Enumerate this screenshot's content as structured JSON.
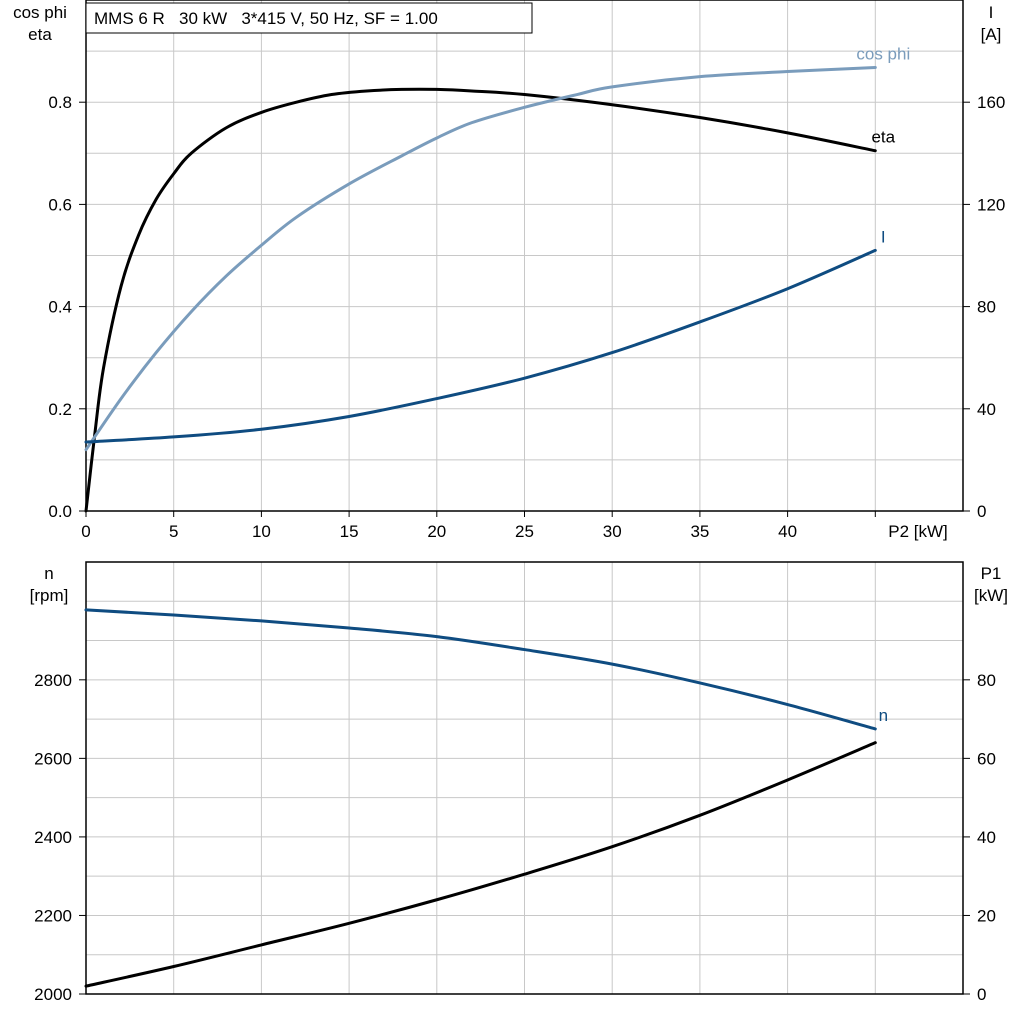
{
  "title": "MMS 6 R   30 kW   3*415 V, 50 Hz, SF = 1.00",
  "colors": {
    "eta": "#000000",
    "cos_phi": "#7a9cbc",
    "current": "#0f4c81",
    "speed": "#0f4c81",
    "p1": "#000000",
    "grid": "#c8c8c8",
    "frame": "#000000"
  },
  "chart_data": [
    {
      "type": "line",
      "xlabel": "P2 [kW]",
      "xlim": [
        0,
        50
      ],
      "xticks": [
        0,
        5,
        10,
        15,
        20,
        25,
        30,
        35,
        40
      ],
      "left_axis": {
        "label_lines": [
          "cos phi",
          "eta"
        ],
        "ylim": [
          0,
          1.0
        ],
        "ticks": [
          "0.0",
          "0.2",
          "0.4",
          "0.6",
          "0.8"
        ],
        "tick_values": [
          0,
          0.2,
          0.4,
          0.6,
          0.8
        ]
      },
      "right_axis": {
        "label_lines": [
          "I",
          "[A]"
        ],
        "ylim": [
          0,
          200
        ],
        "ticks": [
          "0",
          "40",
          "80",
          "120",
          "160"
        ],
        "tick_values": [
          0,
          40,
          80,
          120,
          160
        ]
      },
      "grid": true,
      "series": [
        {
          "name": "eta",
          "axis": "left",
          "x": [
            0,
            0.5,
            1,
            2,
            3,
            4,
            5,
            6,
            8,
            10,
            12,
            14,
            16,
            18,
            20,
            22,
            25,
            30,
            35,
            40,
            45
          ],
          "y": [
            0.0,
            0.15,
            0.28,
            0.44,
            0.54,
            0.61,
            0.66,
            0.7,
            0.75,
            0.78,
            0.8,
            0.815,
            0.822,
            0.825,
            0.825,
            0.822,
            0.815,
            0.795,
            0.77,
            0.74,
            0.705
          ]
        },
        {
          "name": "cos phi",
          "axis": "left",
          "x": [
            0,
            2,
            4,
            6,
            8,
            10,
            12,
            15,
            18,
            20,
            22,
            25,
            28,
            30,
            35,
            40,
            45
          ],
          "y": [
            0.12,
            0.22,
            0.31,
            0.39,
            0.46,
            0.52,
            0.575,
            0.64,
            0.695,
            0.73,
            0.76,
            0.79,
            0.815,
            0.83,
            0.85,
            0.86,
            0.868
          ]
        },
        {
          "name": "I",
          "axis": "right",
          "x": [
            0,
            5,
            10,
            15,
            20,
            25,
            30,
            35,
            40,
            45
          ],
          "y": [
            27,
            29,
            32,
            37,
            44,
            52,
            62,
            74,
            87,
            102
          ]
        }
      ]
    },
    {
      "type": "line",
      "xlim": [
        0,
        50
      ],
      "left_axis": {
        "label_lines": [
          "n",
          "[rpm]"
        ],
        "ylim": [
          2000,
          3100
        ],
        "ticks": [
          "2000",
          "2200",
          "2400",
          "2600",
          "2800"
        ],
        "tick_values": [
          2000,
          2200,
          2400,
          2600,
          2800
        ]
      },
      "right_axis": {
        "label_lines": [
          "P1",
          "[kW]"
        ],
        "ylim": [
          0,
          110
        ],
        "ticks": [
          "0",
          "20",
          "40",
          "60",
          "80"
        ],
        "tick_values": [
          0,
          20,
          40,
          60,
          80
        ]
      },
      "grid": true,
      "series": [
        {
          "name": "n",
          "axis": "left",
          "x": [
            0,
            5,
            10,
            15,
            20,
            25,
            30,
            35,
            40,
            45
          ],
          "y": [
            2978,
            2965,
            2950,
            2932,
            2910,
            2877,
            2840,
            2792,
            2737,
            2675
          ]
        },
        {
          "name": "",
          "axis": "right",
          "x": [
            0,
            5,
            10,
            15,
            20,
            25,
            30,
            35,
            40,
            45
          ],
          "y": [
            2,
            7,
            12.5,
            18,
            24,
            30.5,
            37.5,
            45.5,
            54.5,
            64
          ]
        }
      ]
    }
  ]
}
